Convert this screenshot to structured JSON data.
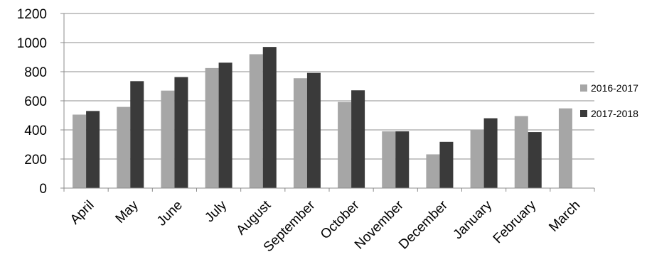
{
  "chart_data": {
    "type": "bar",
    "title": "",
    "xlabel": "",
    "ylabel": "",
    "ylim": [
      0,
      1200
    ],
    "yticks": [
      0,
      200,
      400,
      600,
      800,
      1000,
      1200
    ],
    "grid": true,
    "legend_position": "right",
    "categories": [
      "April",
      "May",
      "June",
      "July",
      "August",
      "September",
      "October",
      "November",
      "December",
      "January",
      "February",
      "March"
    ],
    "series": [
      {
        "name": "2016-2017",
        "color": "#a6a6a6",
        "values": [
          505,
          558,
          670,
          825,
          920,
          755,
          592,
          390,
          232,
          403,
          495,
          548
        ]
      },
      {
        "name": "2017-2018",
        "color": "#3a3a3a",
        "values": [
          530,
          735,
          763,
          862,
          970,
          792,
          672,
          390,
          318,
          480,
          385,
          null
        ]
      }
    ]
  }
}
